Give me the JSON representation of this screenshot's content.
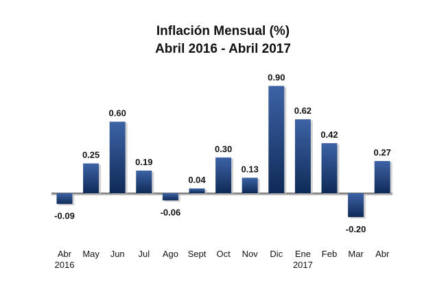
{
  "chart_data": {
    "type": "bar",
    "title": "Inflación Mensual (%)",
    "subtitle": "Abril 2016 - Abril 2017",
    "categories": [
      [
        "Abr",
        "2016"
      ],
      [
        "May"
      ],
      [
        "Jun"
      ],
      [
        "Jul"
      ],
      [
        "Ago"
      ],
      [
        "Sept"
      ],
      [
        "Oct"
      ],
      [
        "Nov"
      ],
      [
        "Dic"
      ],
      [
        "Ene",
        "2017"
      ],
      [
        "Feb"
      ],
      [
        "Mar"
      ],
      [
        "Abr"
      ]
    ],
    "values": [
      -0.09,
      0.25,
      0.6,
      0.19,
      -0.06,
      0.04,
      0.3,
      0.13,
      0.9,
      0.62,
      0.42,
      -0.2,
      0.27
    ],
    "labels": [
      "-0.09",
      "0.25",
      "0.60",
      "0.19",
      "-0.06",
      "0.04",
      "0.30",
      "0.13",
      "0.90",
      "0.62",
      "0.42",
      "-0.20",
      "0.27"
    ],
    "xlabel": "",
    "ylabel": "",
    "ylim": [
      -0.2,
      0.9
    ],
    "grid": false,
    "legend": "none",
    "colors": {
      "bar_top": "#3d63a6",
      "bar_bottom": "#0f2a57",
      "axis": "#555555",
      "shadow": "#b8b8b8"
    }
  }
}
